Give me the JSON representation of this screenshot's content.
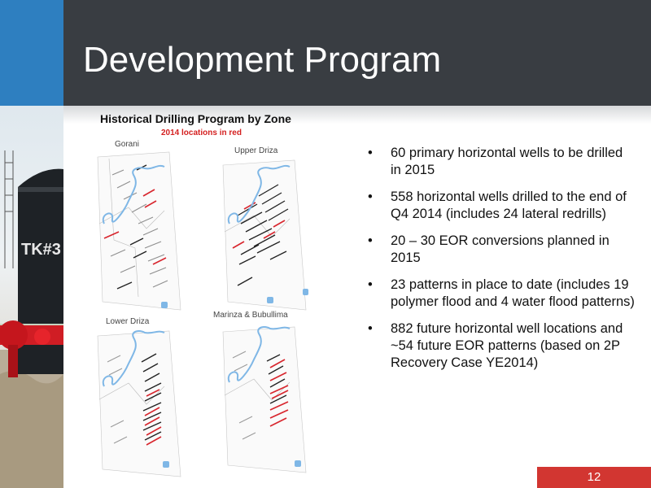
{
  "slide": {
    "title": "Development Program",
    "page_number": "12"
  },
  "figure": {
    "title": "Historical Drilling Program by Zone",
    "subtitle": "2014 locations in red",
    "zones": [
      "Gorani",
      "Upper Driza",
      "Lower Driza",
      "Marinza & Bubullima"
    ]
  },
  "bullets": [
    "60 primary horizontal wells to be drilled in 2015",
    "558 horizontal wells drilled to the end of Q4 2014 (includes 24 lateral redrills)",
    "20 – 30 EOR conversions planned in 2015",
    "23 patterns in place to date (includes 19 polymer flood and 4 water flood patterns)",
    "882 future horizontal well locations and ~54 future EOR patterns (based on 2P Recovery Case YE2014)"
  ],
  "photo": {
    "tank_label": "TK#3"
  },
  "colors": {
    "header_bg": "#393d42",
    "accent_blue": "#2e7fc0",
    "accent_red": "#d23631",
    "river_blue": "#7fb7e6"
  }
}
